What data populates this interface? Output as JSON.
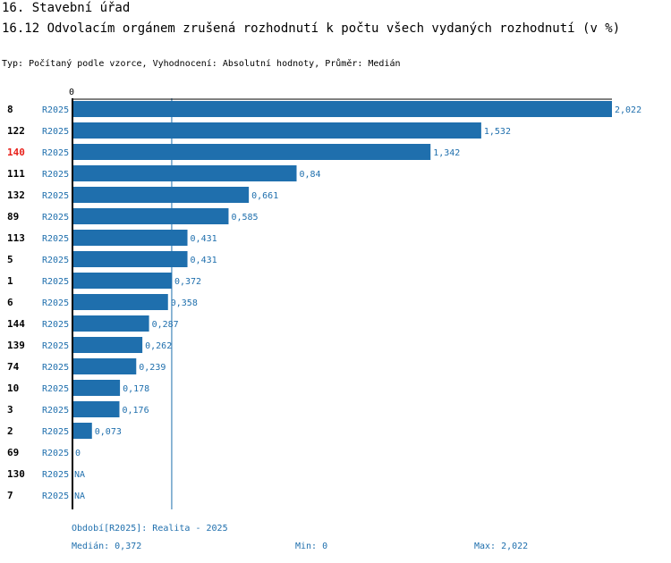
{
  "header": {
    "section": "16. Stavební úřad",
    "title": "16.12 Odvolacím orgánem zrušená rozhodnutí k počtu všech vydaných rozhodnutí (v %)",
    "subtitle": "Typ: Počítaný podle vzorce, Vyhodnocení: Absolutní hodnoty, Průměr: Medián"
  },
  "colors": {
    "bar": "#1f6fad",
    "text": "#1f6fad",
    "highlight": "#e8201a",
    "label": "#000000"
  },
  "chart_data": {
    "type": "bar",
    "orientation": "horizontal",
    "axis_zero_label": "0",
    "xlim": [
      0,
      2.022
    ],
    "median": 0.372,
    "highlight_category": "140",
    "categories": [
      "8",
      "122",
      "140",
      "111",
      "132",
      "89",
      "113",
      "5",
      "1",
      "6",
      "144",
      "139",
      "74",
      "10",
      "3",
      "2",
      "69",
      "130",
      "7"
    ],
    "series_labels": [
      "R2025",
      "R2025",
      "R2025",
      "R2025",
      "R2025",
      "R2025",
      "R2025",
      "R2025",
      "R2025",
      "R2025",
      "R2025",
      "R2025",
      "R2025",
      "R2025",
      "R2025",
      "R2025",
      "R2025",
      "R2025",
      "R2025"
    ],
    "values": [
      2.022,
      1.532,
      1.342,
      0.84,
      0.661,
      0.585,
      0.431,
      0.431,
      0.372,
      0.358,
      0.287,
      0.262,
      0.239,
      0.178,
      0.176,
      0.073,
      0,
      null,
      null
    ],
    "value_labels": [
      "2,022",
      "1,532",
      "1,342",
      "0,84",
      "0,661",
      "0,585",
      "0,431",
      "0,431",
      "0,372",
      "0,358",
      "0,287",
      "0,262",
      "0,239",
      "0,178",
      "0,176",
      "0,073",
      "0",
      "NA",
      "NA"
    ]
  },
  "footer": {
    "period": "Období[R2025]: Realita - 2025",
    "median": "Medián: 0,372",
    "min": "Min: 0",
    "max": "Max: 2,022"
  }
}
